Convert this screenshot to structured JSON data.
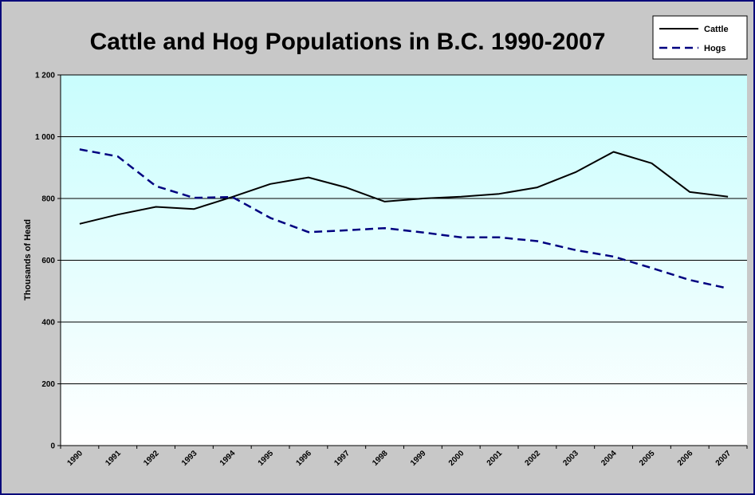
{
  "chart_data": {
    "type": "line",
    "title": "Cattle and Hog Populations in B.C. 1990-2007",
    "ylabel": "Thousands of Head",
    "xlabel": "",
    "categories": [
      "1990",
      "1991",
      "1992",
      "1993",
      "1994",
      "1995",
      "1996",
      "1997",
      "1998",
      "1999",
      "2000",
      "2001",
      "2002",
      "2003",
      "2004",
      "2005",
      "2006",
      "2007"
    ],
    "y_ticks": [
      0,
      200,
      400,
      600,
      800,
      1000,
      1200
    ],
    "y_tick_labels": [
      "0",
      "200",
      "400",
      "600",
      "800",
      "1 000",
      "1 200"
    ],
    "ylim": [
      0,
      1200
    ],
    "grid": true,
    "legend_position": "top-right",
    "series": [
      {
        "name": "Cattle",
        "color": "#000000",
        "dash": "solid",
        "values": [
          718,
          748,
          773,
          766,
          805,
          847,
          868,
          835,
          790,
          800,
          806,
          815,
          836,
          885,
          951,
          914,
          821,
          806
        ]
      },
      {
        "name": "Hogs",
        "color": "#000080",
        "dash": "dashed",
        "values": [
          959,
          936,
          840,
          802,
          805,
          737,
          691,
          697,
          704,
          690,
          674,
          674,
          662,
          633,
          612,
          575,
          536,
          509
        ]
      }
    ]
  }
}
